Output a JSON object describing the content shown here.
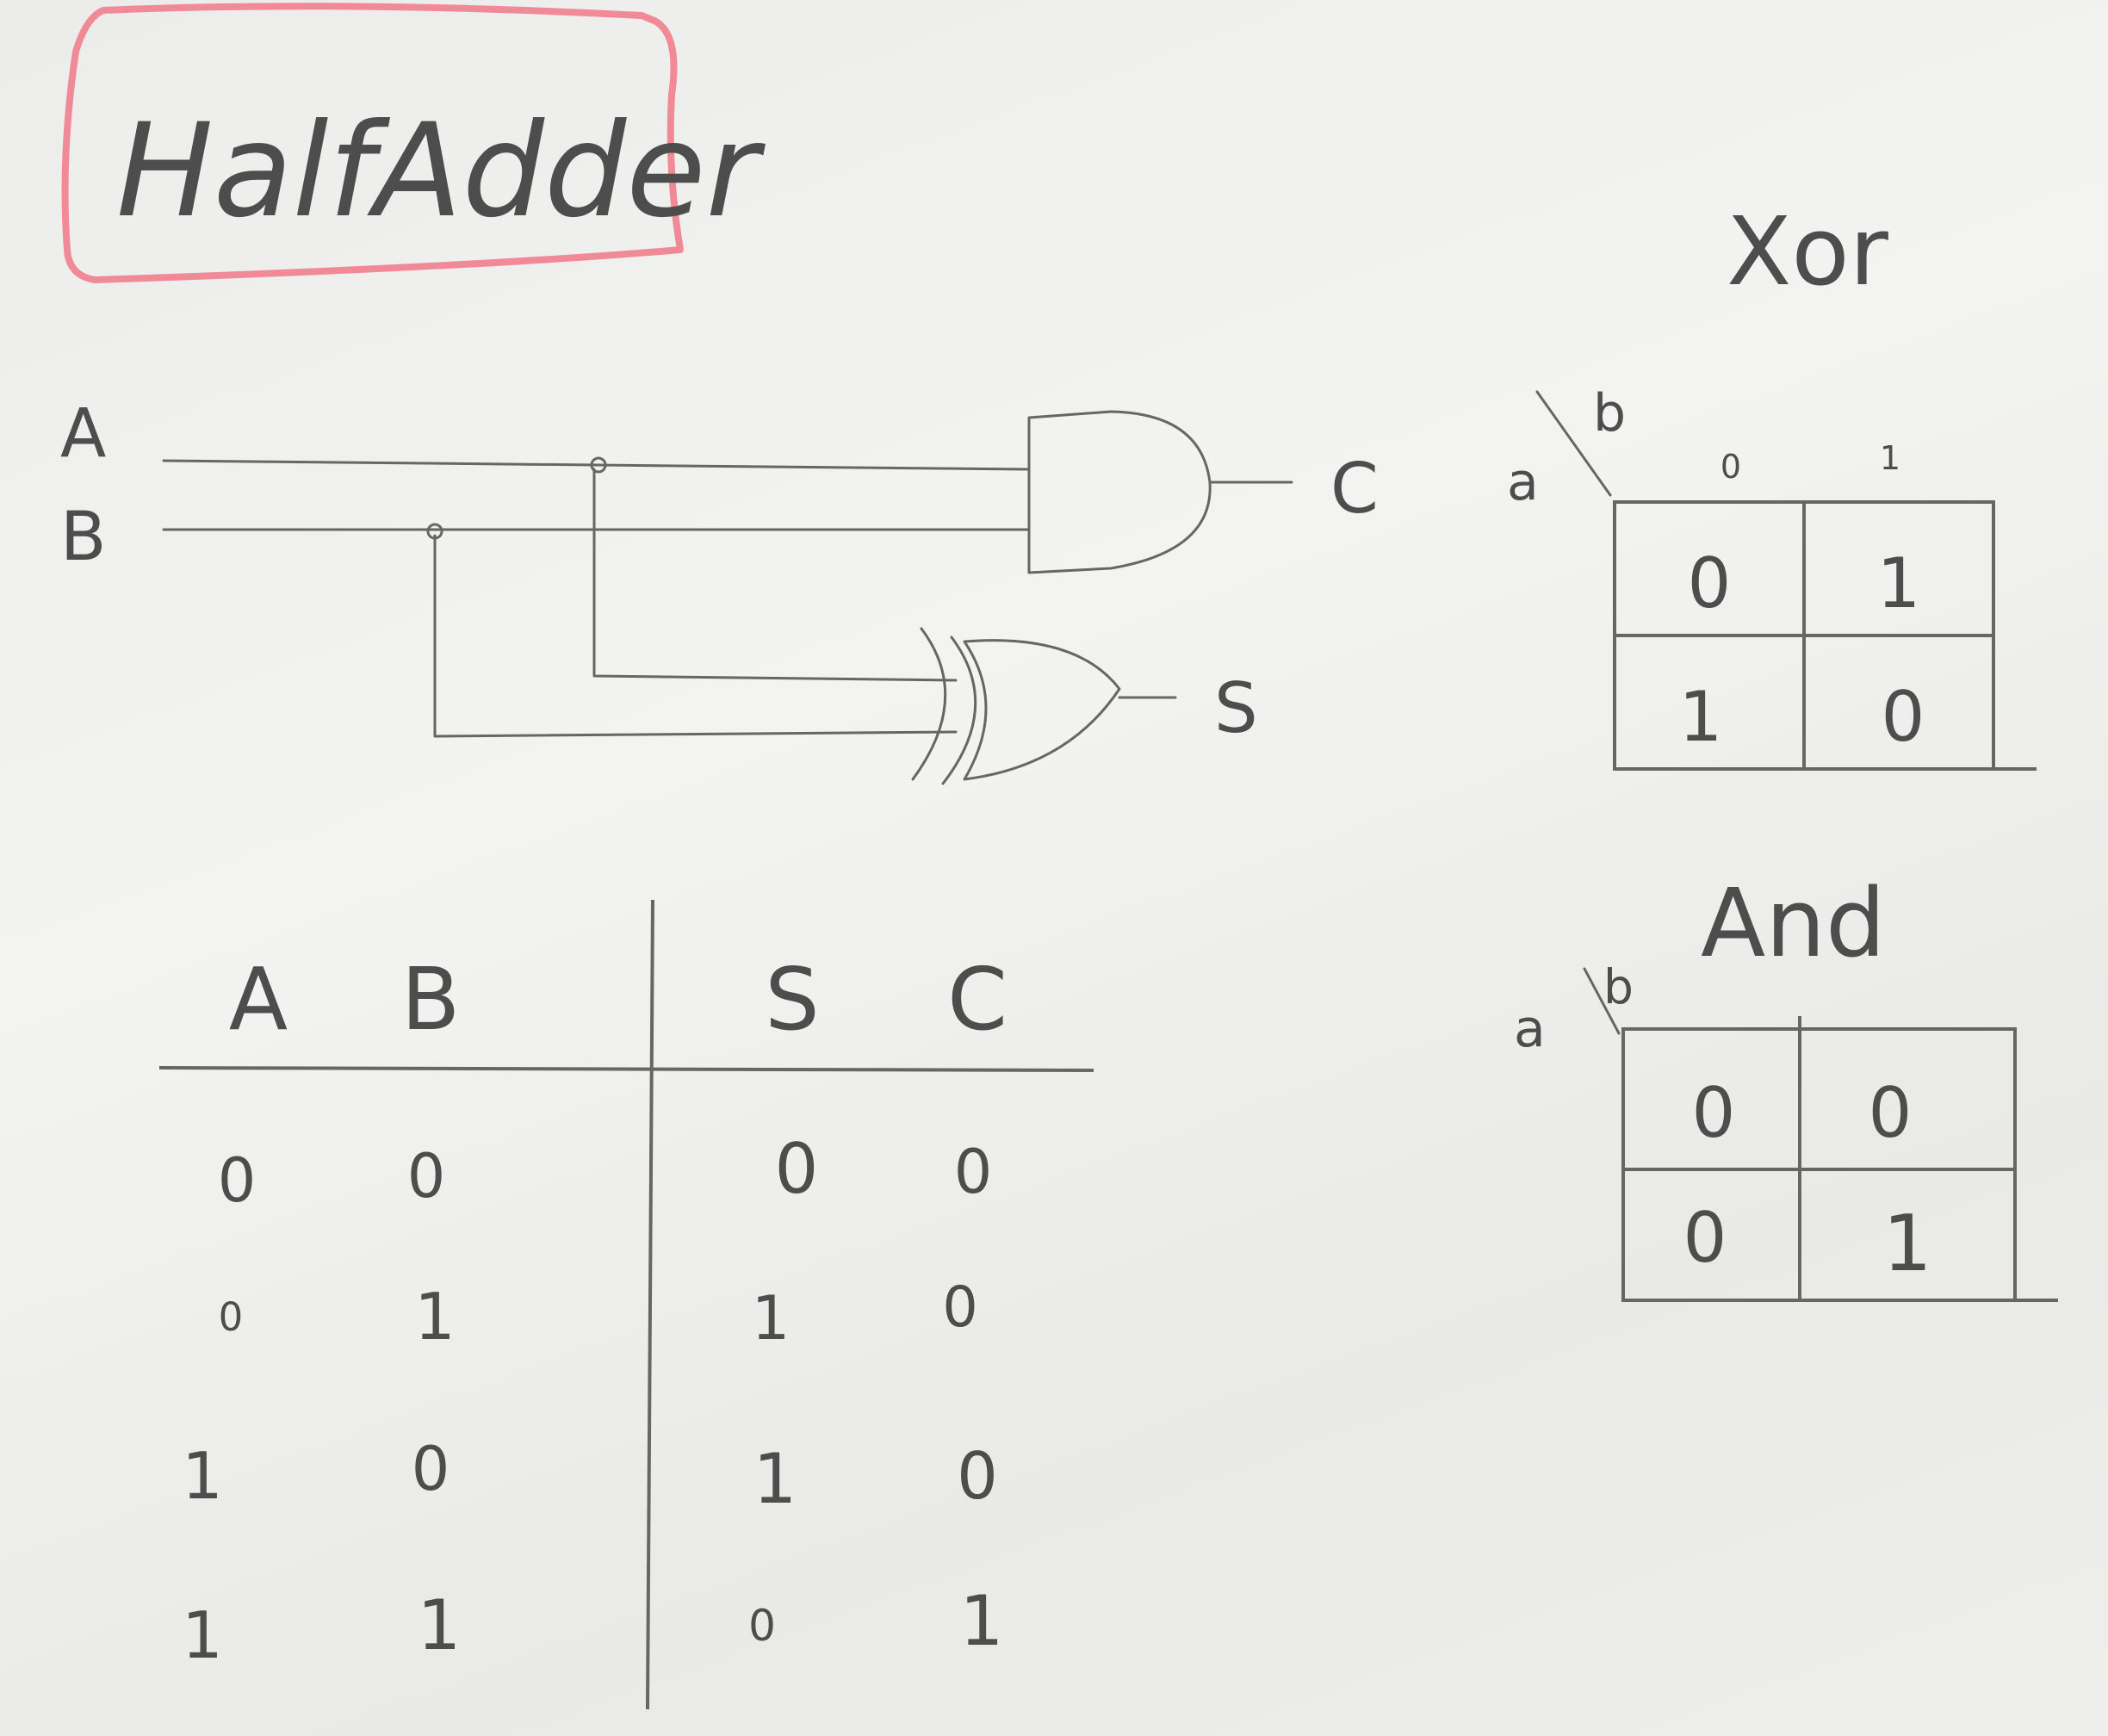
{
  "title": "HalfAdder",
  "circuit": {
    "inputs": [
      "A",
      "B"
    ],
    "outputs": {
      "carry": "C",
      "sum": "S"
    },
    "gates": [
      {
        "type": "and-gate",
        "output": "C"
      },
      {
        "type": "xor-gate",
        "output": "S"
      }
    ]
  },
  "truth_table": {
    "headers": [
      "A",
      "B",
      "S",
      "C"
    ],
    "rows": [
      [
        "0",
        "0",
        "0",
        "0"
      ],
      [
        "0",
        "1",
        "1",
        "0"
      ],
      [
        "1",
        "0",
        "1",
        "0"
      ],
      [
        "1",
        "1",
        "0",
        "1"
      ]
    ]
  },
  "kmaps": [
    {
      "title": "Xor",
      "row_var": "a",
      "col_var": "b",
      "col_headers": [
        "0",
        "1"
      ],
      "cells": [
        [
          "0",
          "1"
        ],
        [
          "1",
          "0"
        ]
      ]
    },
    {
      "title": "And",
      "row_var": "a",
      "col_var": "b",
      "col_headers": [],
      "cells": [
        [
          "0",
          "0"
        ],
        [
          "0",
          "1"
        ]
      ]
    }
  ],
  "colors": {
    "title_box": "#f08a96",
    "pencil": "#666666"
  }
}
